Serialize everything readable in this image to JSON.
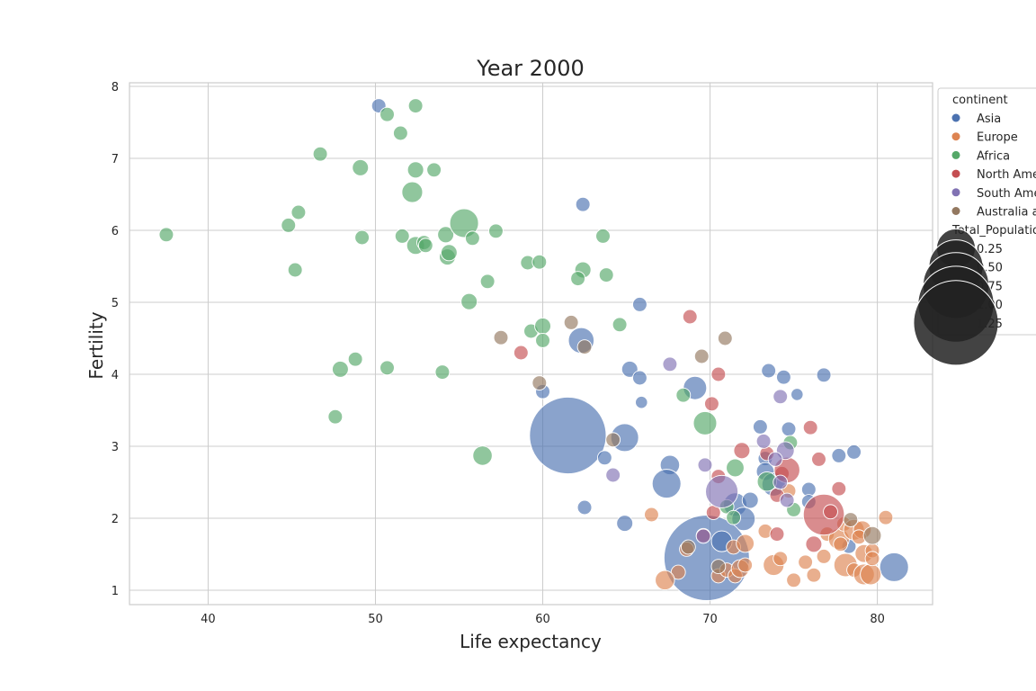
{
  "chart_data": {
    "type": "scatter",
    "title": "Year 2000",
    "xlabel": "Life expectancy",
    "ylabel": "Fertility",
    "xlim": [
      35.3,
      83.3
    ],
    "ylim": [
      0.8,
      8.05
    ],
    "xticks": [
      40,
      50,
      60,
      70,
      80
    ],
    "yticks": [
      1,
      2,
      3,
      4,
      5,
      6,
      7,
      8
    ],
    "grid": true,
    "legend_position": "upper-right-outside",
    "hue_title": "continent",
    "size_title": "Total_Population",
    "size_legend": [
      0.25,
      0.5,
      0.75,
      1.0,
      1.25
    ],
    "colors": {
      "Asia": "#4c72b0",
      "Europe": "#dd8452",
      "Africa": "#55a868",
      "North America": "#c44e52",
      "South America": "#8172b3",
      "Australia and Oceania": "#937860"
    },
    "series": [
      {
        "name": "Asia",
        "points": [
          [
            50.2,
            7.73,
            0.02
          ],
          [
            62.4,
            6.36,
            0.02
          ],
          [
            65.8,
            4.97,
            0.02
          ],
          [
            62.3,
            4.47,
            0.1
          ],
          [
            65.2,
            4.07,
            0.03
          ],
          [
            65.8,
            3.95,
            0.02
          ],
          [
            60.0,
            3.76,
            0.02
          ],
          [
            65.9,
            3.61,
            0.01
          ],
          [
            69.1,
            3.81,
            0.08
          ],
          [
            73.5,
            4.05,
            0.02
          ],
          [
            74.4,
            3.96,
            0.02
          ],
          [
            76.8,
            3.99,
            0.02
          ],
          [
            75.2,
            3.72,
            0.01
          ],
          [
            61.5,
            3.15,
            1.02
          ],
          [
            64.9,
            3.12,
            0.12
          ],
          [
            63.7,
            2.84,
            0.02
          ],
          [
            67.6,
            2.74,
            0.05
          ],
          [
            73.0,
            3.27,
            0.02
          ],
          [
            74.7,
            3.24,
            0.02
          ],
          [
            73.3,
            2.83,
            0.02
          ],
          [
            73.3,
            2.65,
            0.04
          ],
          [
            73.8,
            2.47,
            0.08
          ],
          [
            75.9,
            2.4,
            0.02
          ],
          [
            77.7,
            2.87,
            0.02
          ],
          [
            78.6,
            2.92,
            0.02
          ],
          [
            67.4,
            2.48,
            0.13
          ],
          [
            71.5,
            2.19,
            0.08
          ],
          [
            72.4,
            2.25,
            0.03
          ],
          [
            75.9,
            2.23,
            0.02
          ],
          [
            72.0,
            1.99,
            0.08
          ],
          [
            62.5,
            2.15,
            0.02
          ],
          [
            64.9,
            1.93,
            0.03
          ],
          [
            69.8,
            1.45,
            1.27
          ],
          [
            70.7,
            1.68,
            0.06
          ],
          [
            78.3,
            1.61,
            0.02
          ],
          [
            81.0,
            1.32,
            0.13
          ]
        ]
      },
      {
        "name": "Europe",
        "points": [
          [
            66.5,
            2.05,
            0.02
          ],
          [
            68.6,
            1.57,
            0.02
          ],
          [
            68.1,
            1.25,
            0.02
          ],
          [
            67.3,
            1.14,
            0.05
          ],
          [
            70.5,
            1.2,
            0.02
          ],
          [
            71.0,
            1.28,
            0.02
          ],
          [
            71.5,
            1.2,
            0.02
          ],
          [
            71.4,
            1.6,
            0.02
          ],
          [
            72.1,
            1.65,
            0.04
          ],
          [
            71.8,
            1.3,
            0.04
          ],
          [
            72.1,
            1.35,
            0.02
          ],
          [
            73.3,
            1.82,
            0.02
          ],
          [
            73.8,
            1.35,
            0.06
          ],
          [
            74.2,
            1.44,
            0.02
          ],
          [
            74.7,
            2.38,
            0.02
          ],
          [
            75.0,
            1.14,
            0.02
          ],
          [
            75.7,
            1.39,
            0.02
          ],
          [
            76.2,
            1.21,
            0.02
          ],
          [
            76.8,
            1.47,
            0.02
          ],
          [
            77.0,
            1.78,
            0.02
          ],
          [
            77.7,
            1.71,
            0.06
          ],
          [
            77.8,
            1.64,
            0.02
          ],
          [
            78.0,
            1.92,
            0.02
          ],
          [
            78.1,
            1.35,
            0.08
          ],
          [
            78.6,
            1.28,
            0.02
          ],
          [
            78.6,
            1.84,
            0.06
          ],
          [
            79.1,
            1.84,
            0.04
          ],
          [
            79.2,
            1.51,
            0.04
          ],
          [
            79.2,
            1.22,
            0.06
          ],
          [
            79.6,
            1.22,
            0.06
          ],
          [
            79.7,
            1.55,
            0.02
          ],
          [
            79.7,
            1.44,
            0.02
          ],
          [
            80.5,
            2.01,
            0.02
          ],
          [
            78.9,
            1.74,
            0.02
          ]
        ]
      },
      {
        "name": "Africa",
        "points": [
          [
            37.5,
            5.94,
            0.02
          ],
          [
            45.2,
            5.45,
            0.02
          ],
          [
            44.8,
            6.07,
            0.02
          ],
          [
            45.4,
            6.25,
            0.02
          ],
          [
            46.7,
            7.06,
            0.02
          ],
          [
            49.1,
            6.87,
            0.03
          ],
          [
            49.2,
            5.9,
            0.02
          ],
          [
            50.7,
            7.61,
            0.02
          ],
          [
            51.5,
            7.35,
            0.02
          ],
          [
            52.4,
            7.73,
            0.02
          ],
          [
            52.4,
            6.84,
            0.03
          ],
          [
            53.5,
            6.84,
            0.02
          ],
          [
            52.2,
            6.53,
            0.06
          ],
          [
            51.6,
            5.92,
            0.02
          ],
          [
            52.4,
            5.79,
            0.04
          ],
          [
            52.9,
            5.83,
            0.02
          ],
          [
            53.0,
            5.79,
            0.02
          ],
          [
            54.2,
            5.94,
            0.03
          ],
          [
            54.3,
            5.63,
            0.03
          ],
          [
            54.4,
            5.69,
            0.03
          ],
          [
            55.3,
            6.1,
            0.13
          ],
          [
            55.8,
            5.89,
            0.02
          ],
          [
            57.2,
            5.99,
            0.02
          ],
          [
            56.7,
            5.29,
            0.02
          ],
          [
            59.1,
            5.55,
            0.02
          ],
          [
            59.8,
            5.56,
            0.02
          ],
          [
            62.4,
            5.45,
            0.03
          ],
          [
            62.1,
            5.33,
            0.02
          ],
          [
            63.6,
            5.92,
            0.02
          ],
          [
            63.8,
            5.38,
            0.02
          ],
          [
            55.6,
            5.01,
            0.03
          ],
          [
            59.3,
            4.6,
            0.02
          ],
          [
            60.0,
            4.67,
            0.03
          ],
          [
            60.0,
            4.47,
            0.02
          ],
          [
            64.6,
            4.69,
            0.02
          ],
          [
            48.8,
            4.21,
            0.02
          ],
          [
            47.9,
            4.07,
            0.03
          ],
          [
            50.7,
            4.09,
            0.02
          ],
          [
            54.0,
            4.03,
            0.02
          ],
          [
            47.6,
            3.41,
            0.02
          ],
          [
            56.4,
            2.87,
            0.05
          ],
          [
            68.4,
            3.71,
            0.02
          ],
          [
            69.7,
            3.32,
            0.08
          ],
          [
            71.5,
            2.7,
            0.04
          ],
          [
            74.8,
            3.05,
            0.02
          ],
          [
            73.4,
            2.51,
            0.05
          ],
          [
            71.0,
            2.16,
            0.02
          ],
          [
            71.4,
            2.01,
            0.02
          ],
          [
            75.0,
            2.12,
            0.02
          ]
        ]
      },
      {
        "name": "North America",
        "points": [
          [
            58.7,
            4.3,
            0.02
          ],
          [
            68.8,
            4.8,
            0.02
          ],
          [
            70.5,
            4.0,
            0.02
          ],
          [
            70.1,
            3.59,
            0.02
          ],
          [
            71.9,
            2.94,
            0.03
          ],
          [
            70.5,
            2.58,
            0.02
          ],
          [
            73.4,
            2.9,
            0.02
          ],
          [
            74.3,
            2.62,
            0.02
          ],
          [
            74.6,
            2.67,
            0.1
          ],
          [
            76.0,
            3.26,
            0.02
          ],
          [
            76.5,
            2.82,
            0.02
          ],
          [
            74.0,
            2.32,
            0.02
          ],
          [
            77.7,
            2.41,
            0.02
          ],
          [
            76.8,
            2.05,
            0.28
          ],
          [
            77.2,
            2.09,
            0.02
          ],
          [
            70.2,
            2.08,
            0.02
          ],
          [
            69.6,
            1.76,
            0.02
          ],
          [
            74.0,
            1.78,
            0.02
          ],
          [
            76.2,
            1.64,
            0.03
          ]
        ]
      },
      {
        "name": "South America",
        "points": [
          [
            67.6,
            4.14,
            0.02
          ],
          [
            74.2,
            3.69,
            0.02
          ],
          [
            73.2,
            3.07,
            0.02
          ],
          [
            74.5,
            2.94,
            0.04
          ],
          [
            73.9,
            2.82,
            0.02
          ],
          [
            69.7,
            2.74,
            0.02
          ],
          [
            64.2,
            2.6,
            0.02
          ],
          [
            70.7,
            2.37,
            0.17
          ],
          [
            74.2,
            2.5,
            0.02
          ],
          [
            74.6,
            2.25,
            0.02
          ],
          [
            69.6,
            1.75,
            0.02
          ]
        ]
      },
      {
        "name": "Australia and Oceania",
        "points": [
          [
            57.5,
            4.51,
            0.02
          ],
          [
            61.7,
            4.72,
            0.02
          ],
          [
            62.5,
            4.38,
            0.02
          ],
          [
            69.5,
            4.25,
            0.02
          ],
          [
            70.9,
            4.5,
            0.02
          ],
          [
            59.8,
            3.88,
            0.02
          ],
          [
            64.2,
            3.09,
            0.02
          ],
          [
            78.4,
            1.98,
            0.02
          ],
          [
            79.7,
            1.76,
            0.04
          ],
          [
            70.5,
            1.33,
            0.02
          ],
          [
            68.7,
            1.6,
            0.02
          ]
        ]
      }
    ]
  }
}
